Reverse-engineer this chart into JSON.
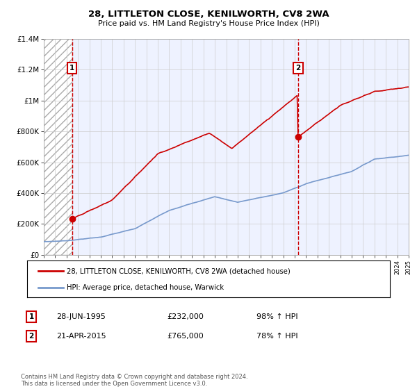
{
  "title": "28, LITTLETON CLOSE, KENILWORTH, CV8 2WA",
  "subtitle": "Price paid vs. HM Land Registry's House Price Index (HPI)",
  "line1_label": "28, LITTLETON CLOSE, KENILWORTH, CV8 2WA (detached house)",
  "line2_label": "HPI: Average price, detached house, Warwick",
  "line1_color": "#cc0000",
  "line2_color": "#7799cc",
  "transaction1": {
    "date": 1995.49,
    "price": 232000,
    "label": "1",
    "pct": "98% ↑ HPI",
    "date_str": "28-JUN-1995",
    "price_str": "£232,000"
  },
  "transaction2": {
    "date": 2015.31,
    "price": 765000,
    "label": "2",
    "pct": "78% ↑ HPI",
    "date_str": "21-APR-2015",
    "price_str": "£765,000"
  },
  "xmin": 1993,
  "xmax": 2025,
  "ymin": 0,
  "ymax": 1400000,
  "yticks": [
    0,
    200000,
    400000,
    600000,
    800000,
    1000000,
    1200000,
    1400000
  ],
  "ytick_labels": [
    "£0",
    "£200K",
    "£400K",
    "£600K",
    "£800K",
    "£1M",
    "£1.2M",
    "£1.4M"
  ],
  "footer": "Contains HM Land Registry data © Crown copyright and database right 2024.\nThis data is licensed under the Open Government Licence v3.0.",
  "bg_color": "#ffffff",
  "plot_bg": "#eef2ff",
  "grid_color": "#cccccc"
}
